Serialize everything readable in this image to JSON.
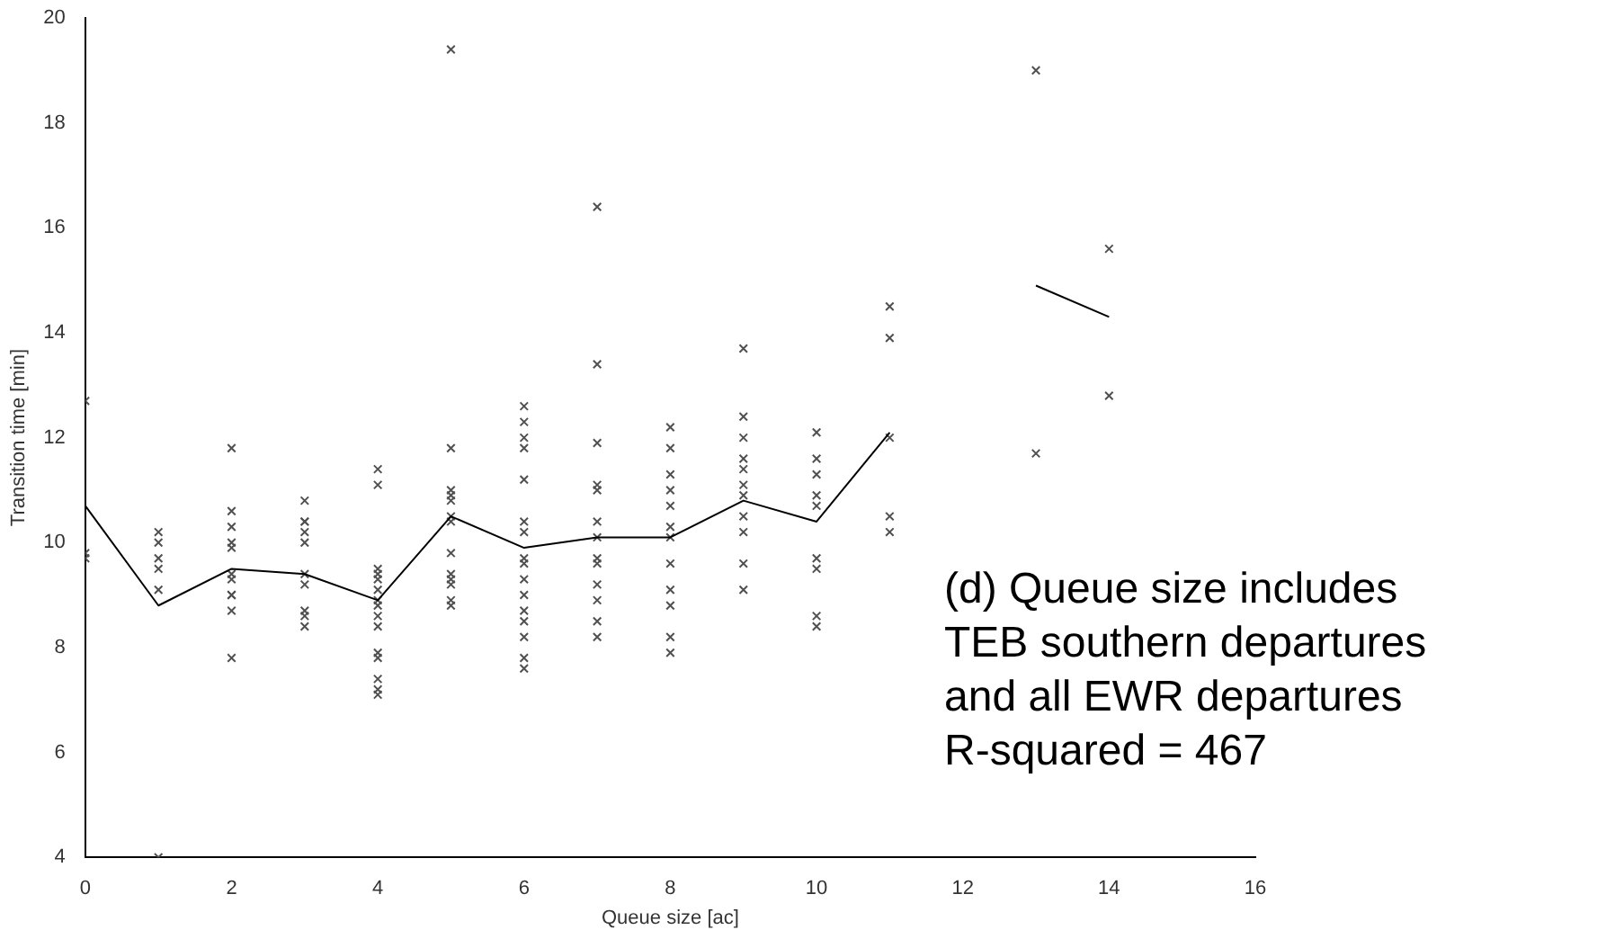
{
  "chart_data": {
    "type": "scatter",
    "xlabel": "Queue size [ac]",
    "ylabel": "Transition time [min]",
    "xlim": [
      0,
      16
    ],
    "xticks": [
      0,
      2,
      4,
      6,
      8,
      10,
      12,
      14,
      16
    ],
    "ylim": [
      4,
      20
    ],
    "yticks": [
      4,
      6,
      8,
      10,
      12,
      14,
      16,
      18,
      20
    ],
    "grid": false,
    "legend": false,
    "marker": "cross",
    "series": [
      {
        "color": "#505050",
        "x": [
          0,
          0,
          0,
          1,
          1,
          1,
          1,
          1,
          1,
          2,
          2,
          2,
          2,
          2,
          2,
          2,
          2,
          2,
          2,
          2,
          3,
          3,
          3,
          3,
          3,
          3,
          3,
          3,
          3,
          3,
          4,
          4,
          4,
          4,
          4,
          4,
          4,
          4,
          4,
          4,
          4,
          4,
          4,
          4,
          4,
          5,
          5,
          5,
          5,
          5,
          5,
          5,
          5,
          5,
          5,
          5,
          5,
          5,
          6,
          6,
          6,
          6,
          6,
          6,
          6,
          6,
          6,
          6,
          6,
          6,
          6,
          6,
          6,
          6,
          7,
          7,
          7,
          7,
          7,
          7,
          7,
          7,
          7,
          7,
          7,
          7,
          7,
          8,
          8,
          8,
          8,
          8,
          8,
          8,
          8,
          8,
          8,
          8,
          8,
          9,
          9,
          9,
          9,
          9,
          9,
          9,
          9,
          9,
          9,
          9,
          10,
          10,
          10,
          10,
          10,
          10,
          10,
          10,
          10,
          11,
          11,
          11,
          11,
          11,
          13,
          13,
          14,
          14
        ],
        "values": [
          12.7,
          9.8,
          9.7,
          10.2,
          10.0,
          9.7,
          9.5,
          9.1,
          4.0,
          11.8,
          10.6,
          10.3,
          10.0,
          9.9,
          9.4,
          9.3,
          9.0,
          9.0,
          8.7,
          7.8,
          10.8,
          10.4,
          10.4,
          10.2,
          10.0,
          9.4,
          9.2,
          8.7,
          8.6,
          8.4,
          11.4,
          11.1,
          9.5,
          9.4,
          9.3,
          9.1,
          8.9,
          8.8,
          8.6,
          8.4,
          7.9,
          7.8,
          7.4,
          7.2,
          7.1,
          19.4,
          11.8,
          11.0,
          10.9,
          10.8,
          10.5,
          10.4,
          9.8,
          9.4,
          9.3,
          9.2,
          8.9,
          8.8,
          12.6,
          12.3,
          12.0,
          11.8,
          11.2,
          10.4,
          10.2,
          9.7,
          9.6,
          9.3,
          9.0,
          8.7,
          8.5,
          8.2,
          7.8,
          7.6,
          16.4,
          13.4,
          11.9,
          11.1,
          11.0,
          10.4,
          10.1,
          9.7,
          9.6,
          9.2,
          8.9,
          8.5,
          8.2,
          12.2,
          11.8,
          11.3,
          11.0,
          10.7,
          10.3,
          10.1,
          9.6,
          9.1,
          8.8,
          8.2,
          7.9,
          13.7,
          12.4,
          12.0,
          11.6,
          11.4,
          11.1,
          10.9,
          10.5,
          10.2,
          9.6,
          9.1,
          12.1,
          11.6,
          11.3,
          10.9,
          10.7,
          9.7,
          9.5,
          8.6,
          8.4,
          14.5,
          13.9,
          12.0,
          10.5,
          10.2,
          19.0,
          11.7,
          15.6,
          12.8
        ]
      },
      {
        "type": "line",
        "color": "#000000",
        "marker": "none",
        "line_style": "solid",
        "x": [
          0,
          1,
          2,
          3,
          4,
          5,
          6,
          7,
          8,
          9,
          10,
          11,
          12,
          13,
          14
        ],
        "values": [
          10.7,
          8.8,
          9.5,
          9.4,
          8.9,
          10.5,
          9.9,
          10.1,
          10.1,
          10.8,
          10.4,
          12.1,
          null,
          14.9,
          14.3
        ]
      }
    ],
    "annotations": [
      "(d) Queue size includes\nTEB southern departures\nand all EWR departures\nR-squared = 467"
    ]
  }
}
